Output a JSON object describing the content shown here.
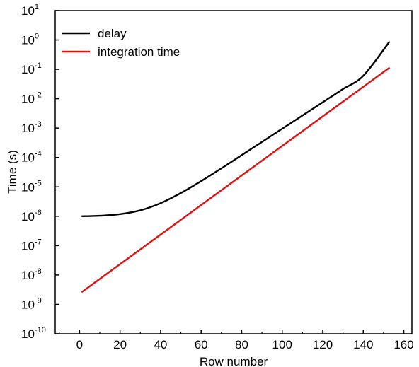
{
  "chart_data": {
    "type": "line",
    "title": "",
    "xlabel": "Row number",
    "ylabel": "Time (s)",
    "xlim": [
      -12,
      164
    ],
    "ylim_log10": [
      -10,
      1
    ],
    "y_scale": "log",
    "x_ticks": [
      "0",
      "20",
      "40",
      "60",
      "80",
      "100",
      "120",
      "140",
      "160"
    ],
    "x_tick_values": [
      0,
      20,
      40,
      60,
      80,
      100,
      120,
      140,
      160
    ],
    "y_tick_exponents": [
      -10,
      -9,
      -8,
      -7,
      -6,
      -5,
      -4,
      -3,
      -2,
      -1,
      0,
      1
    ],
    "y_tick_base": "10",
    "y_tick_labels": [
      "-10",
      "-9",
      "-8",
      "-7",
      "-6",
      "-5",
      "-4",
      "-3",
      "-2",
      "-1",
      "0",
      "1"
    ],
    "legend_position": "top-left",
    "grid": false,
    "series": [
      {
        "name": "delay",
        "color": "#000000",
        "x": [
          1,
          10,
          20,
          30,
          40,
          50,
          60,
          70,
          80,
          90,
          100,
          110,
          120,
          130,
          140,
          153
        ],
        "y": [
          1e-06,
          1.04e-06,
          1.18e-06,
          1.59e-06,
          2.79e-06,
          6.17e-06,
          1.57e-05,
          4.27e-05,
          0.00012,
          0.000339,
          0.000955,
          0.00269,
          0.00759,
          0.0214,
          0.0603,
          0.89
        ]
      },
      {
        "name": "integration time",
        "color": "#e01010",
        "x": [
          1,
          153
        ],
        "y": [
          2.6e-09,
          0.115
        ]
      }
    ]
  }
}
